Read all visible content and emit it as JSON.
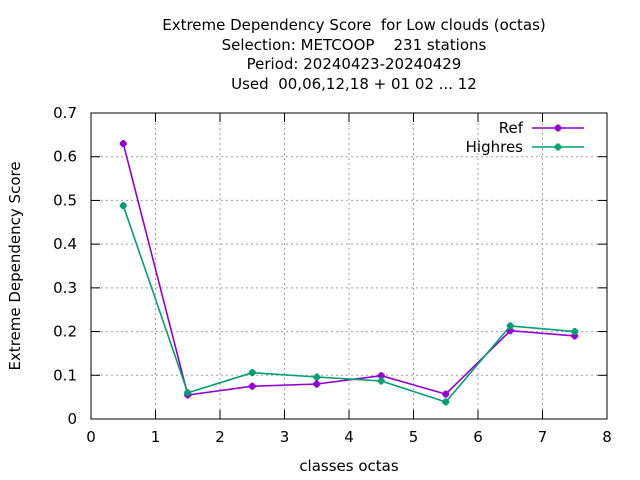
{
  "chart_data": {
    "type": "line",
    "title_lines": [
      "Extreme Dependency Score  for Low clouds (octas)",
      "Selection: METCOOP    231 stations",
      "Period: 20240423-20240429",
      "Used  00,06,12,18 + 01 02 ... 12"
    ],
    "xlabel": "classes octas",
    "ylabel": "Extreme Dependency Score",
    "xlim": [
      0,
      8
    ],
    "ylim": [
      0,
      0.7
    ],
    "xticks": [
      "0",
      "1",
      "2",
      "3",
      "4",
      "5",
      "6",
      "7",
      "8"
    ],
    "yticks": [
      "0",
      "0.1",
      "0.2",
      "0.3",
      "0.4",
      "0.5",
      "0.6",
      "0.7"
    ],
    "grid": true,
    "legend_position": "top-right",
    "x": [
      0.5,
      1.5,
      2.5,
      3.5,
      4.5,
      5.5,
      6.5,
      7.5
    ],
    "series": [
      {
        "name": "Ref",
        "color": "#9400d3",
        "values": [
          0.63,
          0.055,
          0.075,
          0.08,
          0.099,
          0.057,
          0.202,
          0.19
        ]
      },
      {
        "name": "Highres",
        "color": "#009e73",
        "values": [
          0.488,
          0.06,
          0.106,
          0.096,
          0.087,
          0.039,
          0.213,
          0.2
        ]
      }
    ]
  }
}
